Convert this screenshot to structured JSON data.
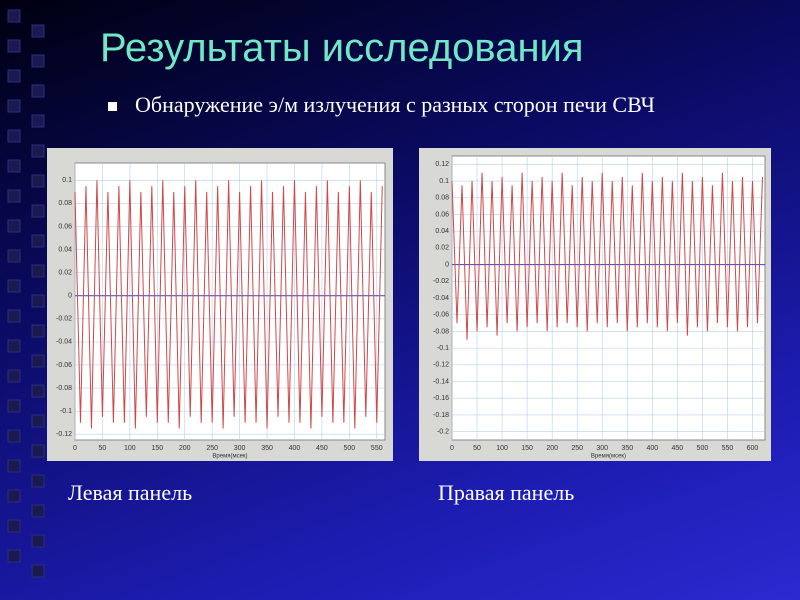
{
  "header": {
    "title": "Результаты исследования",
    "bullet": "Обнаружение э/м излучения с разных сторон печи СВЧ"
  },
  "chart_data": [
    {
      "type": "line",
      "x_label": "Время(мсек)",
      "caption": "Левая панель",
      "x": [
        0,
        10,
        20,
        30,
        40,
        50,
        60,
        70,
        80,
        90,
        100,
        110,
        120,
        130,
        140,
        150,
        160,
        170,
        180,
        190,
        200,
        210,
        220,
        230,
        240,
        250,
        260,
        270,
        280,
        290,
        300,
        310,
        320,
        330,
        340,
        350,
        360,
        370,
        380,
        390,
        400,
        410,
        420,
        430,
        440,
        450,
        460,
        470,
        480,
        490,
        500,
        510,
        520,
        530,
        540,
        550,
        560
      ],
      "series": [
        {
          "color": "#d04848",
          "values": [
            0.09,
            -0.11,
            0.095,
            -0.115,
            0.1,
            -0.105,
            0.09,
            -0.11,
            0.095,
            -0.11,
            0.1,
            -0.115,
            0.09,
            -0.105,
            0.095,
            -0.11,
            0.1,
            -0.11,
            0.09,
            -0.115,
            0.095,
            -0.105,
            0.1,
            -0.11,
            0.09,
            -0.11,
            0.095,
            -0.115,
            0.1,
            -0.105,
            0.09,
            -0.11,
            0.095,
            -0.11,
            0.1,
            -0.115,
            0.09,
            -0.105,
            0.095,
            -0.11,
            0.1,
            -0.11,
            0.09,
            -0.115,
            0.095,
            -0.105,
            0.1,
            -0.11,
            0.09,
            -0.11,
            0.095,
            -0.115,
            0.1,
            -0.105,
            0.09,
            -0.11,
            0.095
          ]
        }
      ],
      "xlim": [
        0,
        565
      ],
      "xticks": [
        0,
        50,
        100,
        150,
        200,
        250,
        300,
        350,
        400,
        450,
        500,
        550
      ],
      "ylim": [
        -0.125,
        0.115
      ],
      "yticks": [
        -0.12,
        -0.1,
        -0.08,
        -0.06,
        -0.04,
        -0.02,
        0,
        0.02,
        0.04,
        0.06,
        0.08,
        0.1
      ],
      "grid": true
    },
    {
      "type": "line",
      "x_label": "Время(мсек)",
      "caption": "Правая панель",
      "x": [
        0,
        10,
        20,
        30,
        40,
        50,
        60,
        70,
        80,
        90,
        100,
        110,
        120,
        130,
        140,
        150,
        160,
        170,
        180,
        190,
        200,
        210,
        220,
        230,
        240,
        250,
        260,
        270,
        280,
        290,
        300,
        310,
        320,
        330,
        340,
        350,
        360,
        370,
        380,
        390,
        400,
        410,
        420,
        430,
        440,
        450,
        460,
        470,
        480,
        490,
        500,
        510,
        520,
        530,
        540,
        550,
        560,
        570,
        580,
        590,
        600,
        610,
        620
      ],
      "series": [
        {
          "color": "#d04848",
          "values": [
            0.1,
            -0.07,
            0.095,
            -0.09,
            0.1,
            -0.08,
            0.11,
            -0.075,
            0.1,
            -0.085,
            0.105,
            -0.07,
            0.095,
            -0.08,
            0.11,
            -0.075,
            0.1,
            -0.07,
            0.105,
            -0.08,
            0.1,
            -0.075,
            0.11,
            -0.07,
            0.095,
            -0.075,
            0.105,
            -0.08,
            0.1,
            -0.07,
            0.11,
            -0.075,
            0.1,
            -0.07,
            0.105,
            -0.08,
            0.095,
            -0.075,
            0.11,
            -0.07,
            0.1,
            -0.075,
            0.105,
            -0.08,
            0.1,
            -0.07,
            0.11,
            -0.085,
            0.1,
            -0.075,
            0.105,
            -0.08,
            0.095,
            -0.07,
            0.11,
            -0.075,
            0.1,
            -0.08,
            0.105,
            -0.075,
            0.1,
            -0.07,
            0.105
          ]
        }
      ],
      "xlim": [
        0,
        625
      ],
      "xticks": [
        0,
        50,
        100,
        150,
        200,
        250,
        300,
        350,
        400,
        450,
        500,
        550,
        600
      ],
      "ylim": [
        -0.21,
        0.13
      ],
      "yticks": [
        -0.2,
        -0.18,
        -0.16,
        -0.14,
        -0.12,
        -0.1,
        -0.08,
        -0.06,
        -0.04,
        -0.02,
        0,
        0.02,
        0.04,
        0.06,
        0.08,
        0.1,
        0.12
      ],
      "grid": true
    }
  ]
}
